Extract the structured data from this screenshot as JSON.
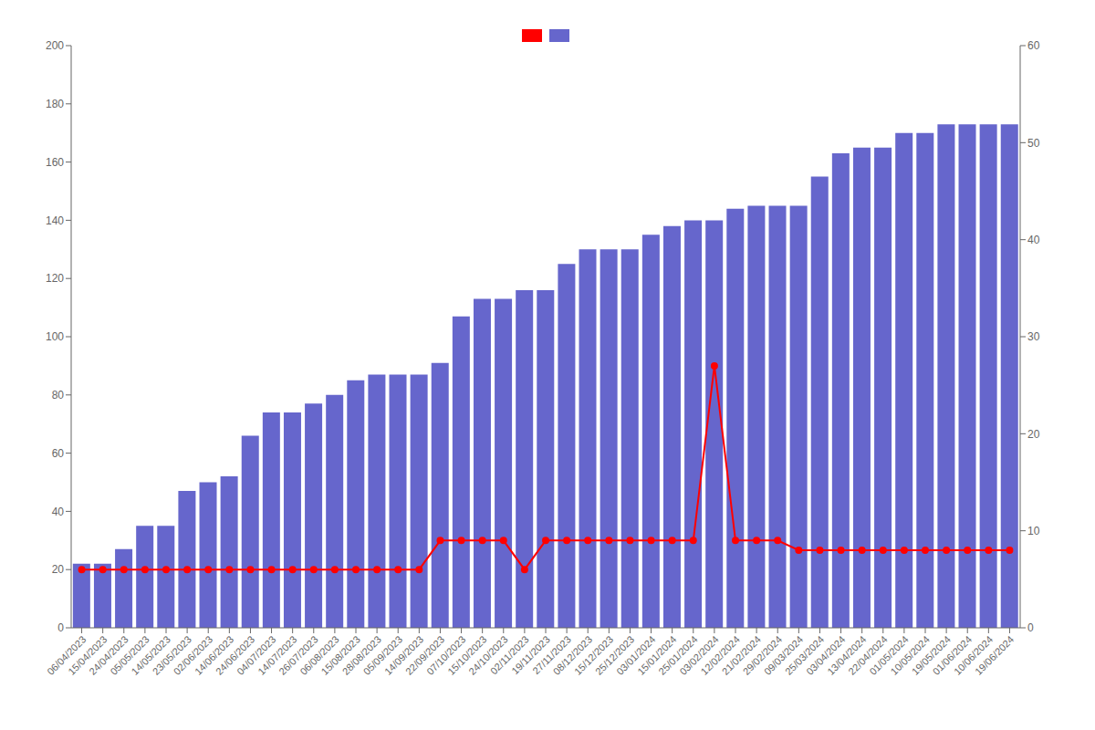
{
  "chart_data": {
    "type": "bar",
    "categories": [
      "06/04/2023",
      "15/04/2023",
      "24/04/2023",
      "05/05/2023",
      "14/05/2023",
      "23/05/2023",
      "02/06/2023",
      "14/06/2023",
      "24/06/2023",
      "04/07/2023",
      "14/07/2023",
      "26/07/2023",
      "06/08/2023",
      "15/08/2023",
      "28/08/2023",
      "05/09/2023",
      "14/09/2023",
      "22/09/2023",
      "07/10/2023",
      "15/10/2023",
      "24/10/2023",
      "02/11/2023",
      "19/11/2023",
      "27/11/2023",
      "08/12/2023",
      "15/12/2023",
      "25/12/2023",
      "03/01/2024",
      "15/01/2024",
      "25/01/2024",
      "03/02/2024",
      "12/02/2024",
      "21/02/2024",
      "29/02/2024",
      "09/03/2024",
      "25/03/2024",
      "03/04/2024",
      "13/04/2024",
      "22/04/2024",
      "01/05/2024",
      "10/05/2024",
      "19/05/2024",
      "01/06/2024",
      "10/06/2024",
      "19/06/2024"
    ],
    "series": [
      {
        "type": "bar",
        "color": "#6666cc",
        "values": [
          22,
          22,
          27,
          35,
          35,
          47,
          50,
          52,
          66,
          74,
          74,
          77,
          80,
          85,
          87,
          87,
          87,
          91,
          107,
          113,
          113,
          116,
          116,
          125,
          130,
          130,
          130,
          135,
          138,
          140,
          140,
          144,
          145,
          145,
          145,
          155,
          163,
          165,
          165,
          170,
          170,
          173,
          173,
          173,
          173
        ]
      },
      {
        "type": "line",
        "color": "#ff0000",
        "marker": "circle",
        "axis": "y2",
        "values": [
          6,
          6,
          6,
          6,
          6,
          6,
          6,
          6,
          6,
          6,
          6,
          6,
          6,
          6,
          6,
          6,
          6,
          9,
          9,
          9,
          9,
          6,
          9,
          9,
          9,
          9,
          9,
          9,
          9,
          9,
          27,
          9,
          9,
          9,
          8,
          8,
          8,
          8,
          8,
          8,
          8,
          8,
          8,
          8,
          8
        ]
      }
    ],
    "ylim": [
      0,
      200
    ],
    "yticks": [
      0,
      20,
      40,
      60,
      80,
      100,
      120,
      140,
      160,
      180,
      200
    ],
    "y2lim": [
      0,
      60
    ],
    "y2ticks": [
      0,
      10,
      20,
      30,
      40,
      50,
      60
    ],
    "grid": false,
    "legend": "top"
  }
}
